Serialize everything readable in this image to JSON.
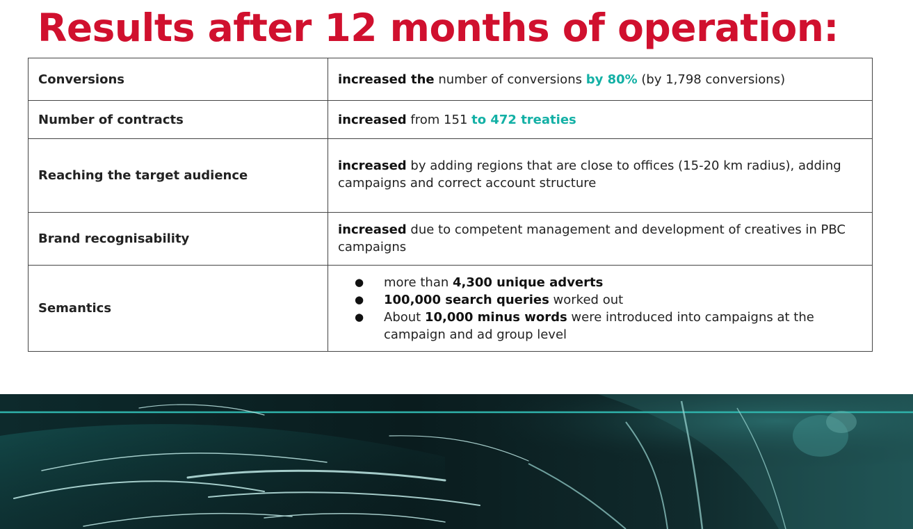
{
  "title": "Results after 12 months of operation:",
  "colors": {
    "title": "#d0102e",
    "highlight": "#13b0a5",
    "banner_base": "#0a1d1f"
  },
  "rows": [
    {
      "label": "Conversions",
      "value": {
        "bold": "increased the",
        "text1": " number of conversions ",
        "highlight": "by 80%",
        "text2": " (by 1,798 conversions)"
      }
    },
    {
      "label": "Number of contracts",
      "value": {
        "bold": "increased",
        "text1": " from 151 ",
        "highlight": "to 472 treaties"
      }
    },
    {
      "label": "Reaching the target audience",
      "value": {
        "bold": "increased",
        "text1": " by adding regions that are close to offices (15-20 km radius), adding campaigns and correct account structure"
      }
    },
    {
      "label": "Brand recognisability",
      "value": {
        "bold": "increased",
        "text1": " due to competent management and development of creatives in PBC campaigns"
      }
    },
    {
      "label": "Semantics",
      "bullets": [
        {
          "pre": "more than ",
          "bold": "4,300 unique adverts",
          "post": ""
        },
        {
          "pre": "",
          "bold": "100,000 search queries",
          "post": " worked out"
        },
        {
          "pre": "About ",
          "bold": "10,000 minus words",
          "post": " were introduced into campaigns at the campaign and ad group level"
        }
      ]
    }
  ]
}
